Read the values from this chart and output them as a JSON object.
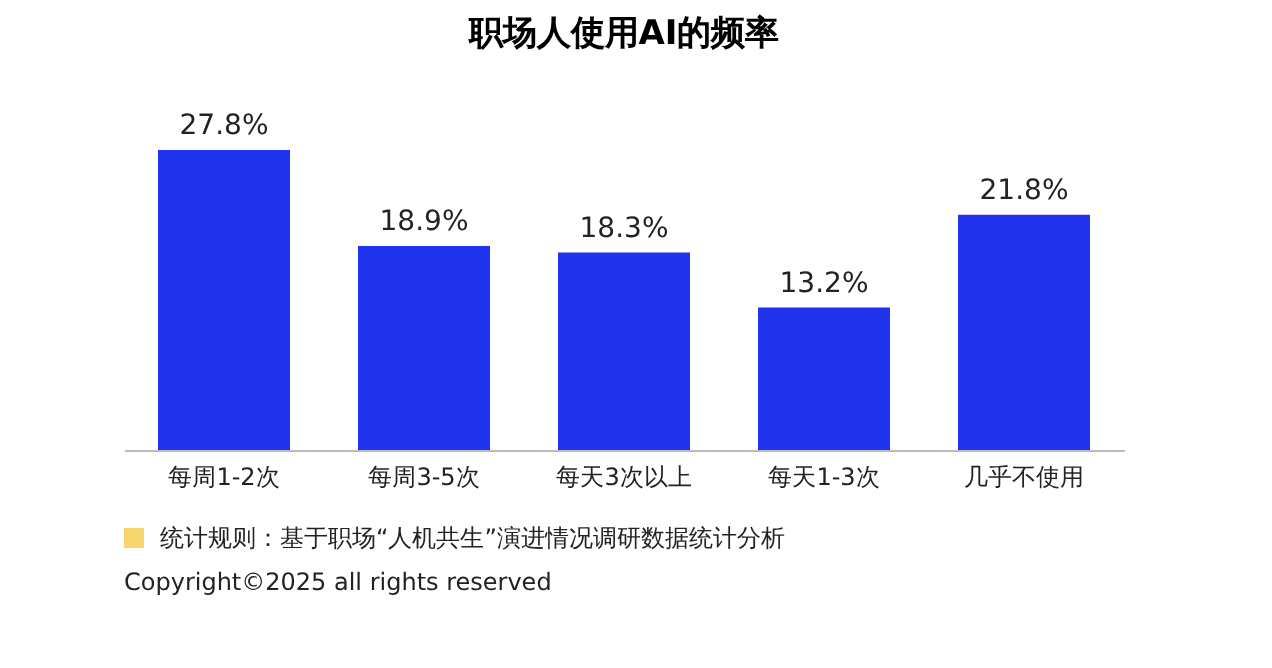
{
  "chart_data": {
    "type": "bar",
    "title": "职场人使用AI的频率",
    "categories": [
      "每周1-2次",
      "每周3-5次",
      "每天3次以上",
      "每天1-3次",
      "几乎不使用"
    ],
    "values": [
      27.8,
      18.9,
      18.3,
      13.2,
      21.8
    ],
    "value_labels": [
      "27.8%",
      "18.9%",
      "18.3%",
      "13.2%",
      "21.8%"
    ],
    "color": "#2233ee",
    "annotations": [
      "统计规则：基于职场“人机共生”演进情况调研数据统计分析",
      "Copyright©2025 all rights reserved"
    ]
  }
}
